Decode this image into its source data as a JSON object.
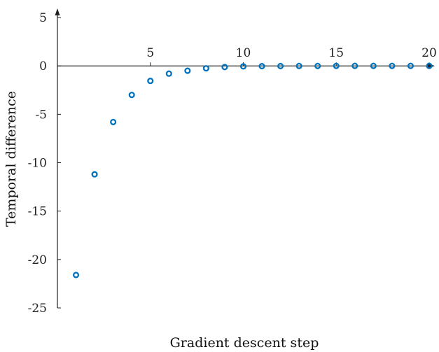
{
  "chart_data": {
    "type": "scatter",
    "title": "",
    "xlabel": "Gradient descent step",
    "ylabel": "Temporal difference",
    "xlim": [
      0,
      20
    ],
    "ylim": [
      -25,
      5
    ],
    "xticks": [
      5,
      10,
      15,
      20
    ],
    "yticks": [
      5,
      0,
      -5,
      -10,
      -15,
      -20,
      -25
    ],
    "grid": false,
    "marker": "open-circle",
    "color": "#0072BD",
    "series": [
      {
        "x": [
          1,
          2,
          3,
          4,
          5,
          6,
          7,
          8,
          9,
          10,
          11,
          12,
          13,
          14,
          15,
          16,
          17,
          18,
          19,
          20
        ],
        "y": [
          -21.6,
          -11.2,
          -5.8,
          -3.0,
          -1.55,
          -0.8,
          -0.5,
          -0.25,
          -0.12,
          -0.05,
          -0.03,
          -0.02,
          -0.01,
          -0.01,
          0,
          0,
          0,
          0,
          0,
          0
        ]
      }
    ]
  }
}
